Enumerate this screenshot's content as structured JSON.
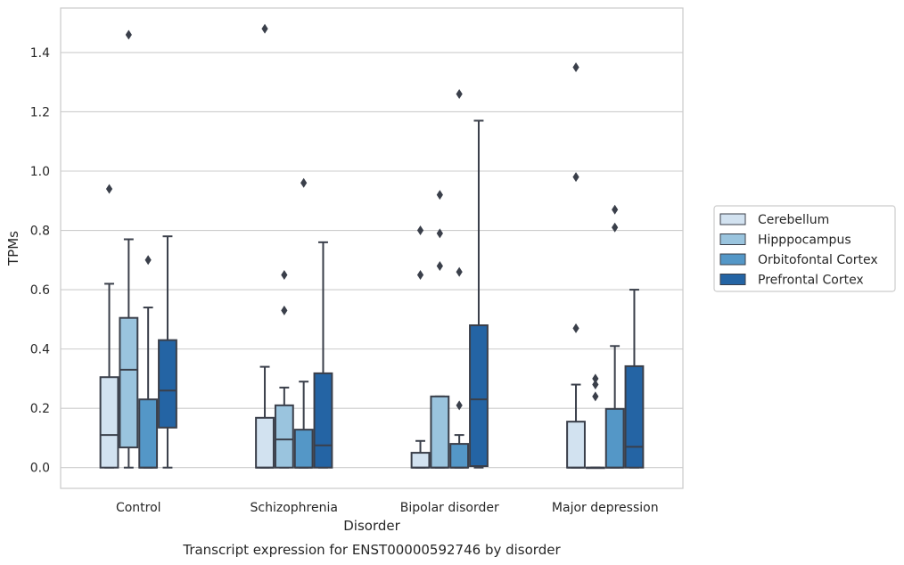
{
  "chart_data": {
    "type": "box",
    "title": "",
    "caption": "Transcript expression for ENST00000592746 by disorder",
    "xlabel": "Disorder",
    "ylabel": "TPMs",
    "ylim": [
      -0.07,
      1.55
    ],
    "yticks": [
      0.0,
      0.2,
      0.4,
      0.6,
      0.8,
      1.0,
      1.2,
      1.4
    ],
    "yticklabels": [
      "0.0",
      "0.2",
      "0.4",
      "0.6",
      "0.8",
      "1.0",
      "1.2",
      "1.4"
    ],
    "grid": "horizontal",
    "legend_position": "right",
    "categories": [
      "Control",
      "Schizophrenia",
      "Bipolar disorder",
      "Major depression"
    ],
    "series": [
      {
        "name": "Cerebellum",
        "color": "#d2e2f0",
        "boxes": [
          {
            "q1": 0.0,
            "median": 0.11,
            "q3": 0.305,
            "whisker_low": 0.0,
            "whisker_high": 0.62,
            "outliers": [
              0.94
            ]
          },
          {
            "q1": 0.0,
            "median": 0.0,
            "q3": 0.168,
            "whisker_low": 0.0,
            "whisker_high": 0.34,
            "outliers": [
              1.48
            ]
          },
          {
            "q1": 0.0,
            "median": 0.0,
            "q3": 0.05,
            "whisker_low": 0.0,
            "whisker_high": 0.09,
            "outliers": [
              0.65,
              0.8
            ]
          },
          {
            "q1": 0.0,
            "median": 0.0,
            "q3": 0.155,
            "whisker_low": 0.0,
            "whisker_high": 0.28,
            "outliers": [
              0.47,
              0.98,
              1.35
            ]
          }
        ]
      },
      {
        "name": "Hipppocampus",
        "color": "#9ac4de",
        "boxes": [
          {
            "q1": 0.068,
            "median": 0.33,
            "q3": 0.505,
            "whisker_low": 0.0,
            "whisker_high": 0.77,
            "outliers": [
              1.46
            ]
          },
          {
            "q1": 0.0,
            "median": 0.095,
            "q3": 0.21,
            "whisker_low": 0.0,
            "whisker_high": 0.27,
            "outliers": [
              0.53,
              0.65
            ]
          },
          {
            "q1": 0.0,
            "median": 0.0,
            "q3": 0.24,
            "whisker_low": 0.0,
            "whisker_high": 0.24,
            "outliers": [
              0.68,
              0.79,
              0.92
            ]
          },
          {
            "q1": 0.0,
            "median": 0.0,
            "q3": 0.0,
            "whisker_low": 0.0,
            "whisker_high": 0.0,
            "outliers": [
              0.24,
              0.28,
              0.3
            ]
          }
        ]
      },
      {
        "name": "Orbitofontal Cortex",
        "color": "#5497c7",
        "boxes": [
          {
            "q1": 0.0,
            "median": 0.0,
            "q3": 0.23,
            "whisker_low": 0.0,
            "whisker_high": 0.54,
            "outliers": [
              0.7
            ]
          },
          {
            "q1": 0.0,
            "median": 0.0,
            "q3": 0.128,
            "whisker_low": 0.0,
            "whisker_high": 0.29,
            "outliers": [
              0.96
            ]
          },
          {
            "q1": 0.0,
            "median": 0.0,
            "q3": 0.08,
            "whisker_low": 0.0,
            "whisker_high": 0.11,
            "outliers": [
              0.21,
              0.66,
              1.26
            ]
          },
          {
            "q1": 0.0,
            "median": 0.0,
            "q3": 0.198,
            "whisker_low": 0.0,
            "whisker_high": 0.41,
            "outliers": [
              0.81,
              0.87
            ]
          }
        ]
      },
      {
        "name": "Prefrontal Cortex",
        "color": "#2464a4",
        "boxes": [
          {
            "q1": 0.135,
            "median": 0.26,
            "q3": 0.43,
            "whisker_low": 0.0,
            "whisker_high": 0.78,
            "outliers": []
          },
          {
            "q1": 0.0,
            "median": 0.075,
            "q3": 0.318,
            "whisker_low": 0.0,
            "whisker_high": 0.76,
            "outliers": []
          },
          {
            "q1": 0.005,
            "median": 0.23,
            "q3": 0.48,
            "whisker_low": 0.0,
            "whisker_high": 1.17,
            "outliers": []
          },
          {
            "q1": 0.0,
            "median": 0.07,
            "q3": 0.342,
            "whisker_low": 0.0,
            "whisker_high": 0.6,
            "outliers": []
          }
        ]
      }
    ]
  }
}
